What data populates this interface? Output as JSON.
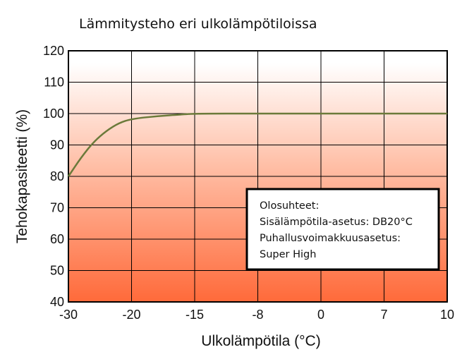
{
  "chart_data": {
    "type": "line",
    "title": "Lämmitysteho eri ulkolämpötiloissa",
    "xlabel": "Ulkolämpötila (°C)",
    "ylabel": "Tehokapasiteetti (%)",
    "x_ticks": [
      "-30",
      "-20",
      "-15",
      "-8",
      "0",
      "7",
      "10"
    ],
    "y_ticks": [
      "120",
      "110",
      "100",
      "90",
      "80",
      "70",
      "60",
      "50",
      "40"
    ],
    "ylim": [
      40,
      120
    ],
    "grid": true,
    "background_gradient": [
      "#ffffff",
      "#ff6a3a"
    ],
    "series": [
      {
        "color": "#6b7a3a",
        "x": [
          -30,
          -28,
          -26,
          -24,
          -22,
          -20,
          -18,
          -16,
          -15,
          -8,
          0,
          7,
          10
        ],
        "y": [
          80,
          86,
          91,
          94.5,
          97,
          98.3,
          99.2,
          99.7,
          100,
          100,
          100,
          100,
          100
        ]
      }
    ],
    "annotation": {
      "lines": [
        "Olosuhteet:",
        "Sisälämpötila-asetus: DB20°C",
        "Puhallusvoimakkuusasetus:",
        "Super High"
      ]
    }
  }
}
